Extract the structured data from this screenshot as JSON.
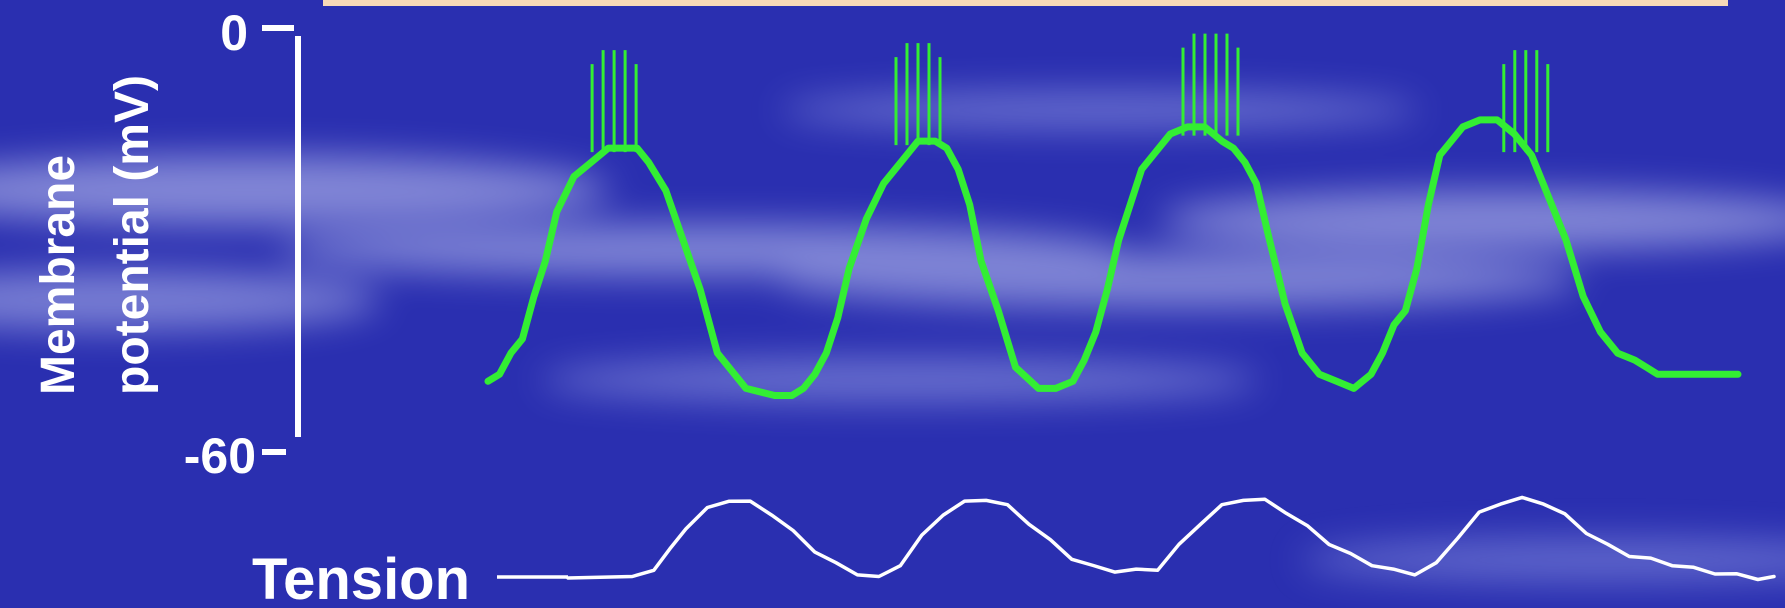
{
  "colors": {
    "background": "#2a2fb0",
    "header_bar": "#f7d9b8",
    "membrane_trace": "#33ee33",
    "tension_trace": "#ffffff",
    "axis": "#ffffff"
  },
  "chart_data": {
    "type": "line",
    "title": "",
    "ylabel_lines": [
      "Membrane",
      "potential (mV)"
    ],
    "y_ticks": [
      "0",
      "-60"
    ],
    "ylim": [
      -60,
      0
    ],
    "grid": false,
    "trace_label": "Tension",
    "series": [
      {
        "id": "membrane",
        "x": [
          0,
          10,
          20,
          30,
          40,
          50,
          60,
          75,
          90,
          105,
          120,
          130,
          140,
          155,
          170,
          185,
          200,
          225,
          250,
          265,
          275,
          285,
          295,
          305,
          315,
          330,
          345,
          360,
          375,
          390,
          400,
          410,
          420,
          430,
          445,
          460,
          480,
          495,
          510,
          520,
          530,
          540,
          550,
          560,
          570,
          580,
          595,
          610,
          625,
          640,
          650,
          660,
          670,
          680,
          695,
          710,
          725,
          740,
          755,
          770,
          780,
          790,
          800,
          810,
          820,
          830,
          840,
          850,
          865,
          880,
          895,
          910,
          925,
          940,
          955,
          970,
          985,
          1000,
          1010,
          1020,
          1030,
          1040,
          1050,
          1060,
          1070,
          1080,
          1090
        ],
        "values": [
          -50,
          -49,
          -46,
          -44,
          -38,
          -33,
          -26,
          -21,
          -19,
          -17,
          -17,
          -17,
          -19,
          -23,
          -30,
          -37,
          -46,
          -51,
          -52,
          -52,
          -51,
          -49,
          -46,
          -41,
          -34,
          -27,
          -22,
          -19,
          -16,
          -16,
          -17,
          -20,
          -25,
          -33,
          -40,
          -48,
          -51,
          -51,
          -50,
          -47,
          -43,
          -37,
          -30,
          -25,
          -20,
          -18,
          -15,
          -14,
          -14,
          -16,
          -17,
          -19,
          -22,
          -29,
          -39,
          -46,
          -49,
          -50,
          -51,
          -49,
          -46,
          -42,
          -40,
          -34,
          -25,
          -18,
          -16,
          -14,
          -13,
          -13,
          -15,
          -18,
          -24,
          -30,
          -38,
          -43,
          -46,
          -47,
          -48,
          -49,
          -49,
          -49,
          -49,
          -49,
          -49,
          -49,
          -49
        ]
      },
      {
        "id": "tension",
        "x": [
          0,
          60,
          80,
          95,
          110,
          130,
          150,
          170,
          190,
          210,
          230,
          250,
          270,
          290,
          310,
          330,
          350,
          370,
          390,
          410,
          430,
          450,
          470,
          490,
          510,
          530,
          550,
          570,
          590,
          610,
          630,
          650,
          670,
          690,
          710,
          730,
          750,
          770,
          790,
          810,
          830,
          850,
          870,
          890,
          910,
          930,
          950,
          970,
          990,
          1010,
          1030,
          1050,
          1070,
          1090,
          1110,
          1125
        ],
        "values": [
          0.0,
          0.0,
          0.1,
          0.3,
          0.55,
          0.75,
          0.85,
          0.82,
          0.7,
          0.5,
          0.3,
          0.15,
          0.05,
          0.0,
          0.15,
          0.45,
          0.7,
          0.82,
          0.86,
          0.78,
          0.6,
          0.4,
          0.22,
          0.12,
          0.08,
          0.08,
          0.1,
          0.35,
          0.6,
          0.78,
          0.86,
          0.84,
          0.72,
          0.55,
          0.38,
          0.25,
          0.15,
          0.08,
          0.05,
          0.15,
          0.45,
          0.7,
          0.82,
          0.86,
          0.82,
          0.68,
          0.5,
          0.35,
          0.25,
          0.2,
          0.15,
          0.1,
          0.06,
          0.03,
          0.0,
          0.0
        ]
      }
    ],
    "spike_bursts": [
      {
        "at_x": 110,
        "count": 5
      },
      {
        "at_x": 375,
        "count": 5
      },
      {
        "at_x": 630,
        "count": 6
      },
      {
        "at_x": 905,
        "count": 5
      }
    ]
  }
}
